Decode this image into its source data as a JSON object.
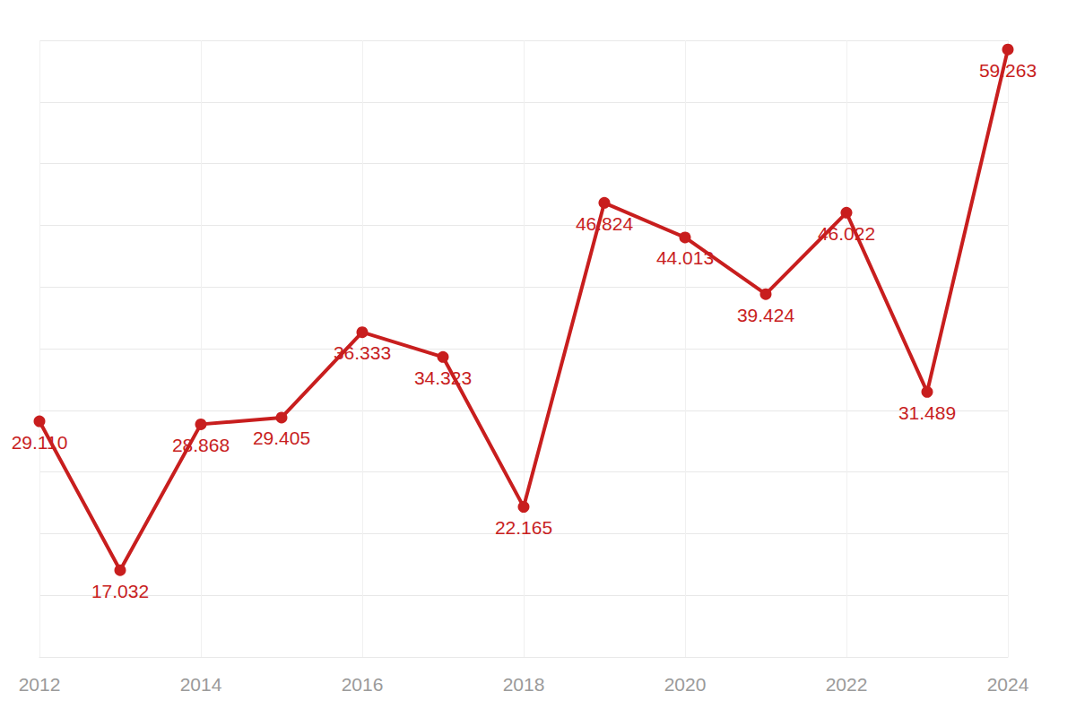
{
  "chart_data": {
    "type": "line",
    "categories": [
      "2012",
      null,
      "2014",
      null,
      "2016",
      null,
      "2018",
      null,
      "2020",
      null,
      "2022",
      null,
      "2024"
    ],
    "values": [
      29.11,
      17.032,
      28.868,
      29.405,
      36.333,
      34.323,
      22.165,
      46.824,
      44.013,
      39.424,
      46.022,
      31.489,
      59.263
    ],
    "value_labels": [
      "29.110",
      "17.032",
      "28.868",
      "29.405",
      "36.333",
      "34.323",
      "22.165",
      "46.824",
      "44.013",
      "39.424",
      "46.022",
      "31.489",
      "59.263"
    ],
    "color": "#c81e1e",
    "ylim": [
      10,
      60
    ],
    "yticks": [
      10,
      15,
      20,
      25,
      30,
      35,
      40,
      45,
      50,
      55,
      60
    ],
    "grid": true,
    "data_labels": true,
    "tick_labels": "x",
    "marker": "circle",
    "line_style": "solid"
  }
}
